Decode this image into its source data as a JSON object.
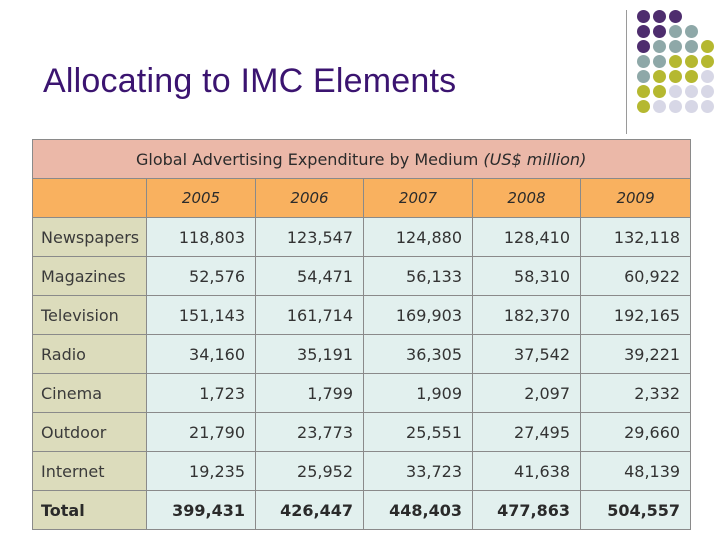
{
  "slide": {
    "title": "Allocating to IMC Elements"
  },
  "decoration": {
    "dot_colors": {
      "purple": "#4e2d6e",
      "teal": "#8ea8a8",
      "olive": "#b5b830",
      "lavender": "#d7d7e6"
    }
  },
  "table": {
    "caption_main": "Global Advertising Expenditure by Medium",
    "caption_unit": "(US$ million)",
    "years": [
      "2005",
      "2006",
      "2007",
      "2008",
      "2009"
    ],
    "rows": [
      {
        "medium": "Newspapers",
        "values": [
          "118,803",
          "123,547",
          "124,880",
          "128,410",
          "132,118"
        ]
      },
      {
        "medium": "Magazines",
        "values": [
          "52,576",
          "54,471",
          "56,133",
          "58,310",
          "60,922"
        ]
      },
      {
        "medium": "Television",
        "values": [
          "151,143",
          "161,714",
          "169,903",
          "182,370",
          "192,165"
        ]
      },
      {
        "medium": "Radio",
        "values": [
          "34,160",
          "35,191",
          "36,305",
          "37,542",
          "39,221"
        ]
      },
      {
        "medium": "Cinema",
        "values": [
          "1,723",
          "1,799",
          "1,909",
          "2,097",
          "2,332"
        ]
      },
      {
        "medium": "Outdoor",
        "values": [
          "21,790",
          "23,773",
          "25,551",
          "27,495",
          "29,660"
        ]
      },
      {
        "medium": "Internet",
        "values": [
          "19,235",
          "25,952",
          "33,723",
          "41,638",
          "48,139"
        ]
      }
    ],
    "total": {
      "medium": "Total",
      "values": [
        "399,431",
        "426,447",
        "448,403",
        "477,863",
        "504,557"
      ]
    },
    "colors": {
      "caption_bg": "#ebb8a8",
      "header_bg": "#f9b15f",
      "label_bg": "#dcdcbc",
      "value_bg": "#e2f0ee"
    }
  }
}
